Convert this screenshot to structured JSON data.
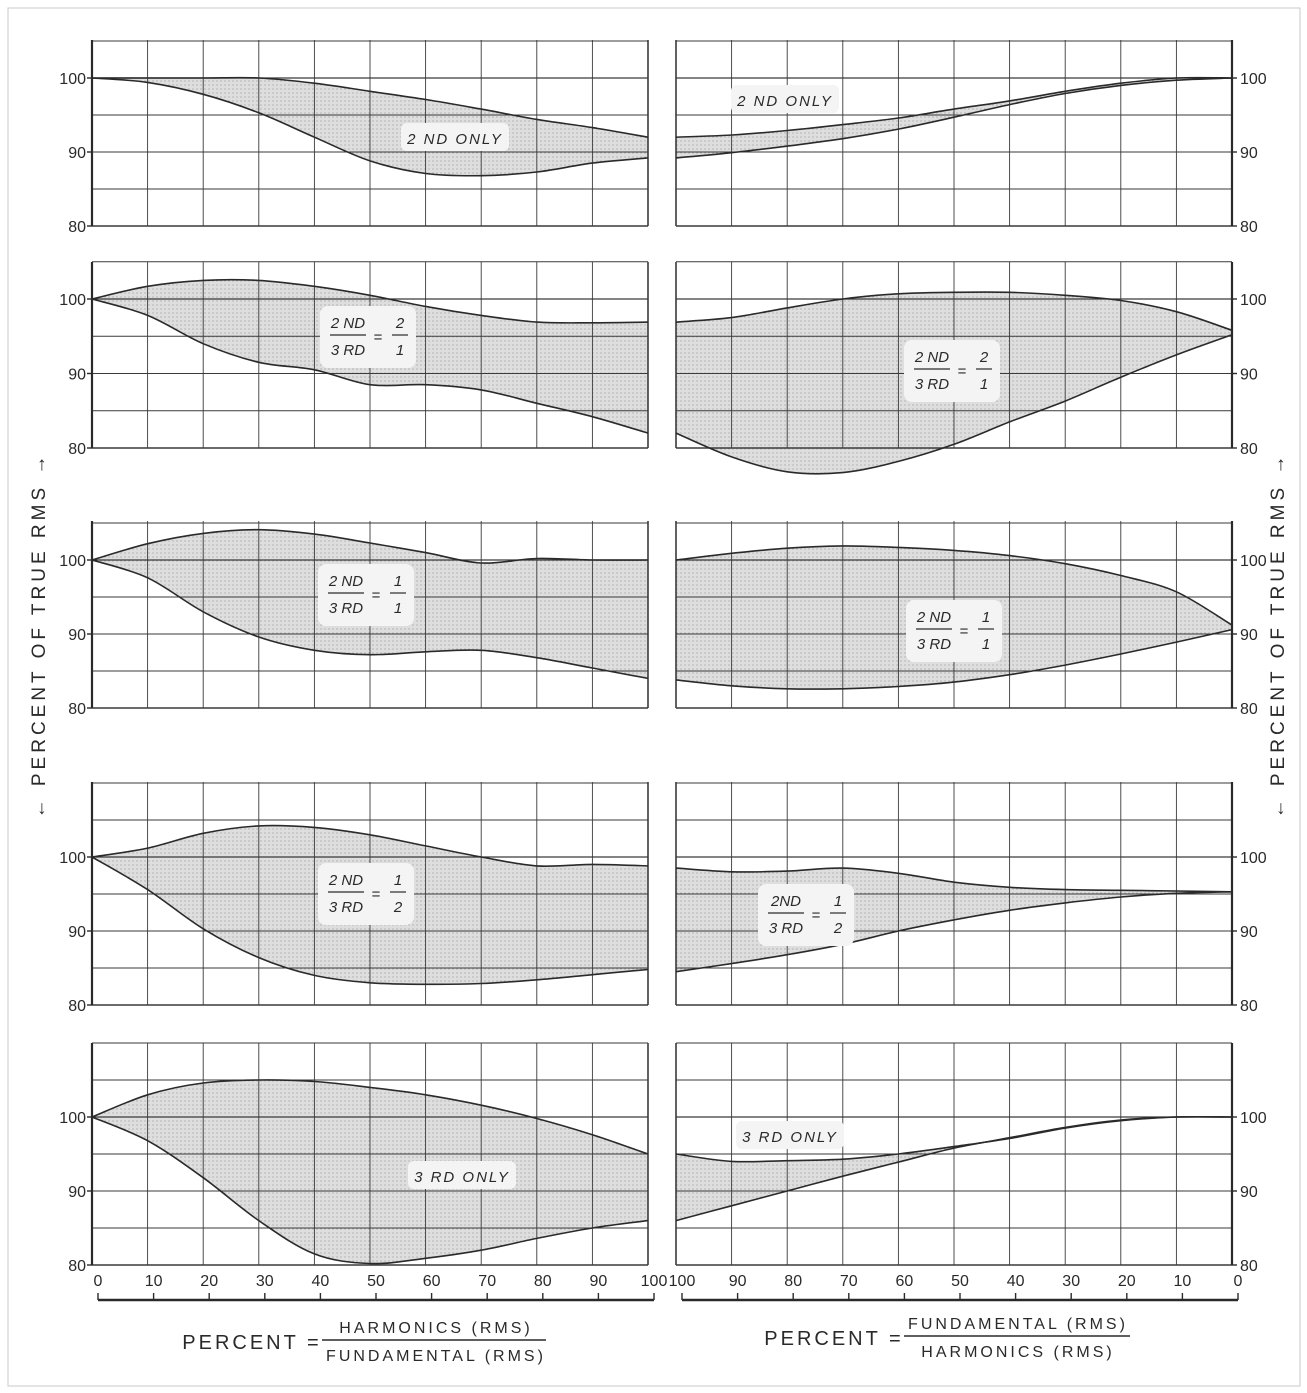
{
  "colors": {
    "ink": "#2a2a2a",
    "grid": "#3a3a3a",
    "band": "#d9d9d9",
    "paper": "#ffffff",
    "label_bg": "#f4f4f4"
  },
  "axis_labels": {
    "left": "← PERCENT OF TRUE RMS →",
    "right": "← PERCENT OF TRUE RMS →"
  },
  "formulas": {
    "left": {
      "lhs": "PERCENT =",
      "numerator": "HARMONICS (RMS)",
      "denominator": "FUNDAMENTAL (RMS)"
    },
    "right": {
      "lhs": "PERCENT =",
      "numerator": "FUNDAMENTAL (RMS)",
      "denominator": "HARMONICS (RMS)"
    }
  },
  "chart_data": [
    {
      "type": "area",
      "row": 0,
      "side": "left",
      "label": {
        "kind": "text",
        "text": "2 ND ONLY"
      },
      "x": [
        0,
        10,
        20,
        30,
        40,
        50,
        60,
        70,
        80,
        90,
        100
      ],
      "ylim": [
        80,
        100
      ],
      "yticks": [
        80,
        90,
        100
      ],
      "series": [
        {
          "values": [
            100,
            100,
            100,
            100,
            99.3,
            98.2,
            97.1,
            95.8,
            94.4,
            93.3,
            92.0
          ]
        },
        {
          "values": [
            100,
            99.4,
            97.8,
            95.3,
            92.0,
            88.8,
            87.1,
            86.8,
            87.3,
            88.5,
            89.2
          ]
        }
      ]
    },
    {
      "type": "area",
      "row": 0,
      "side": "right",
      "label": {
        "kind": "text",
        "text": "2 ND ONLY"
      },
      "x": [
        100,
        90,
        80,
        70,
        60,
        50,
        40,
        30,
        20,
        10,
        0
      ],
      "ylim": [
        80,
        100
      ],
      "yticks": [
        80,
        90,
        100
      ],
      "series": [
        {
          "values": [
            92.0,
            92.3,
            92.9,
            93.7,
            94.6,
            95.8,
            96.9,
            98.2,
            99.3,
            100,
            100
          ]
        },
        {
          "values": [
            89.2,
            89.9,
            90.8,
            91.8,
            93.1,
            94.7,
            96.4,
            97.9,
            99.0,
            99.7,
            100
          ]
        }
      ]
    },
    {
      "type": "area",
      "row": 1,
      "side": "left",
      "label": {
        "kind": "fraction",
        "num": "2 ND",
        "den": "3 RD",
        "eq": "=",
        "rnum": "2",
        "rden": "1"
      },
      "x": [
        0,
        10,
        20,
        30,
        40,
        50,
        60,
        70,
        80,
        90,
        100
      ],
      "ylim": [
        80,
        100
      ],
      "yticks": [
        80,
        90,
        100
      ],
      "series": [
        {
          "values": [
            100,
            101.7,
            102.5,
            102.5,
            101.7,
            100.5,
            99.0,
            97.8,
            96.9,
            96.8,
            96.9
          ]
        },
        {
          "values": [
            100,
            97.8,
            94.0,
            91.5,
            90.5,
            88.5,
            88.5,
            87.8,
            86.0,
            84.2,
            82.0
          ]
        }
      ]
    },
    {
      "type": "area",
      "row": 1,
      "side": "right",
      "label": {
        "kind": "fraction",
        "num": "2 ND",
        "den": "3 RD",
        "eq": "=",
        "rnum": "2",
        "rden": "1"
      },
      "x": [
        100,
        90,
        80,
        70,
        60,
        50,
        40,
        30,
        20,
        10,
        0
      ],
      "ylim": [
        80,
        100
      ],
      "yticks": [
        80,
        90,
        100
      ],
      "series": [
        {
          "values": [
            96.9,
            97.5,
            98.8,
            100,
            100.7,
            100.9,
            100.9,
            100.5,
            99.8,
            98.3,
            95.8
          ]
        },
        {
          "values": [
            82.0,
            78.8,
            76.8,
            76.7,
            78.2,
            80.5,
            83.5,
            86.3,
            89.5,
            92.5,
            95.2
          ]
        }
      ]
    },
    {
      "type": "area",
      "row": 2,
      "side": "left",
      "label": {
        "kind": "fraction",
        "num": "2 ND",
        "den": "3 RD",
        "eq": "=",
        "rnum": "1",
        "rden": "1"
      },
      "x": [
        0,
        10,
        20,
        30,
        40,
        50,
        60,
        70,
        80,
        90,
        100
      ],
      "ylim": [
        80,
        100
      ],
      "yticks": [
        80,
        90,
        100
      ],
      "series": [
        {
          "values": [
            100,
            102.2,
            103.6,
            104.1,
            103.5,
            102.3,
            101.0,
            99.6,
            100.2,
            100,
            100
          ]
        },
        {
          "values": [
            100,
            97.6,
            93.0,
            89.6,
            87.8,
            87.2,
            87.6,
            87.8,
            86.8,
            85.4,
            84.0
          ]
        }
      ]
    },
    {
      "type": "area",
      "row": 2,
      "side": "right",
      "label": {
        "kind": "fraction",
        "num": "2 ND",
        "den": "3 RD",
        "eq": "=",
        "rnum": "1",
        "rden": "1"
      },
      "x": [
        100,
        90,
        80,
        70,
        60,
        50,
        40,
        30,
        20,
        10,
        0
      ],
      "ylim": [
        80,
        100
      ],
      "yticks": [
        80,
        90,
        100
      ],
      "series": [
        {
          "values": [
            100,
            100.9,
            101.6,
            101.9,
            101.7,
            101.3,
            100.6,
            99.5,
            97.9,
            95.7,
            91.2
          ]
        },
        {
          "values": [
            83.8,
            83.0,
            82.6,
            82.6,
            82.9,
            83.5,
            84.5,
            85.8,
            87.3,
            88.9,
            90.6
          ]
        }
      ]
    },
    {
      "type": "area",
      "row": 3,
      "side": "left",
      "label": {
        "kind": "fraction",
        "num": "2 ND",
        "den": "3 RD",
        "eq": "=",
        "rnum": "1",
        "rden": "2"
      },
      "x": [
        0,
        10,
        20,
        30,
        40,
        50,
        60,
        70,
        80,
        90,
        100
      ],
      "ylim": [
        80,
        100
      ],
      "yticks": [
        80,
        90,
        100
      ],
      "series": [
        {
          "values": [
            100,
            101.2,
            103.2,
            104.2,
            104.0,
            103.0,
            101.5,
            100.0,
            98.8,
            99.0,
            98.8
          ]
        },
        {
          "values": [
            100,
            95.6,
            90.3,
            86.4,
            84.0,
            83.0,
            82.8,
            82.9,
            83.4,
            84.1,
            84.8
          ]
        }
      ]
    },
    {
      "type": "area",
      "row": 3,
      "side": "right",
      "label": {
        "kind": "fraction",
        "num": "2ND",
        "den": "3 RD",
        "eq": "=",
        "rnum": "1",
        "rden": "2"
      },
      "x": [
        100,
        90,
        80,
        70,
        60,
        50,
        40,
        30,
        20,
        10,
        0
      ],
      "ylim": [
        80,
        100
      ],
      "yticks": [
        80,
        90,
        100
      ],
      "series": [
        {
          "values": [
            98.5,
            98.0,
            98.1,
            98.5,
            97.8,
            96.6,
            95.9,
            95.6,
            95.5,
            95.4,
            95.3
          ]
        },
        {
          "values": [
            84.5,
            85.6,
            86.8,
            88.2,
            90.0,
            91.5,
            92.8,
            93.8,
            94.6,
            95.1,
            95.3
          ]
        }
      ]
    },
    {
      "type": "area",
      "row": 4,
      "side": "left",
      "label": {
        "kind": "text",
        "text": "3 RD ONLY"
      },
      "x": [
        0,
        10,
        20,
        30,
        40,
        50,
        60,
        70,
        80,
        90,
        100
      ],
      "ylim": [
        80,
        100
      ],
      "yticks": [
        80,
        90,
        100
      ],
      "series": [
        {
          "values": [
            100,
            103.0,
            104.6,
            105.0,
            104.8,
            104.0,
            103.0,
            101.6,
            99.8,
            97.6,
            95.0
          ]
        },
        {
          "values": [
            100,
            96.8,
            91.8,
            86.0,
            81.5,
            80.2,
            80.9,
            82.0,
            83.6,
            85.0,
            86.0
          ]
        }
      ]
    },
    {
      "type": "area",
      "row": 4,
      "side": "right",
      "label": {
        "kind": "text",
        "text": "3 RD ONLY"
      },
      "x": [
        100,
        90,
        80,
        70,
        60,
        50,
        40,
        30,
        20,
        10,
        0
      ],
      "ylim": [
        80,
        100
      ],
      "yticks": [
        80,
        90,
        100
      ],
      "series": [
        {
          "values": [
            95.0,
            94.0,
            94.1,
            94.3,
            95.0,
            96.0,
            97.1,
            98.5,
            99.5,
            100,
            100
          ]
        },
        {
          "values": [
            86.0,
            88.0,
            90.0,
            92.0,
            93.9,
            95.8,
            97.2,
            98.6,
            99.6,
            100,
            100
          ]
        }
      ]
    }
  ],
  "x_axis": {
    "left": {
      "ticks": [
        "0",
        "10",
        "20",
        "30",
        "40",
        "50",
        "60",
        "70",
        "80",
        "90",
        "100"
      ]
    },
    "right": {
      "ticks": [
        "100",
        "90",
        "80",
        "70",
        "60",
        "50",
        "40",
        "30",
        "20",
        "10",
        "0"
      ]
    }
  }
}
